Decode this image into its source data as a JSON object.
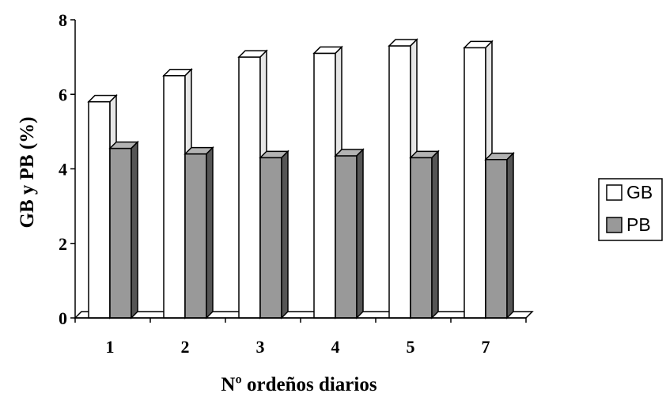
{
  "chart_data": {
    "type": "bar",
    "title": "",
    "xlabel": "Nº ordeños diarios",
    "ylabel": "GB y PB (%)",
    "categories": [
      "1",
      "2",
      "3",
      "4",
      "5",
      "7"
    ],
    "series": [
      {
        "name": "GB",
        "values": [
          5.8,
          6.5,
          7.0,
          7.1,
          7.3,
          7.25
        ],
        "color": "#ffffff"
      },
      {
        "name": "PB",
        "values": [
          4.55,
          4.4,
          4.3,
          4.35,
          4.3,
          4.25
        ],
        "color": "#999999"
      }
    ],
    "yticks": [
      "0",
      "2",
      "4",
      "6",
      "8"
    ],
    "ylim": [
      0,
      8
    ],
    "grid": false,
    "legend": "right",
    "style": "3d-bar"
  }
}
